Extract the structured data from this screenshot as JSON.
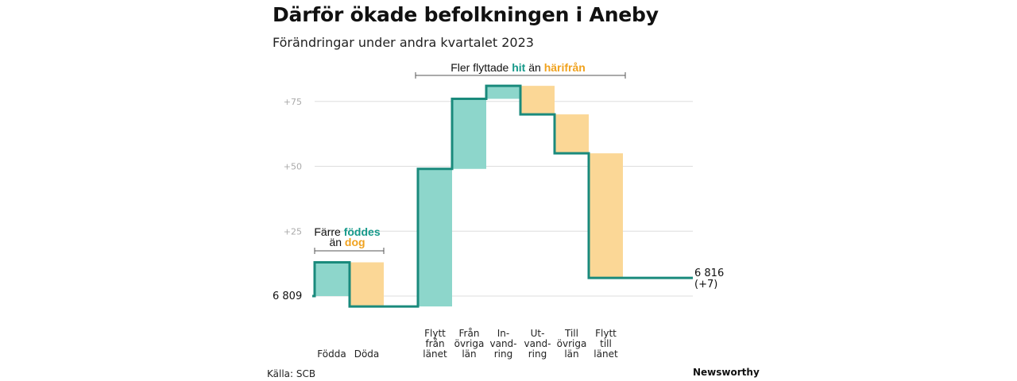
{
  "title": "Därför ökade befolkningen i Aneby",
  "subtitle": "Förändringar under andra kvartalet 2023",
  "source": "Källa: SCB",
  "brand": "Newsworthy",
  "colors": {
    "increase": "#8dd6cb",
    "decrease": "#fbd796",
    "line": "#1a8a7c",
    "teal_text": "#16998a",
    "orange_text": "#f0a21e",
    "grid": "#dddddd"
  },
  "annotations": {
    "births": {
      "line1_pre": "Färre ",
      "line1_em": "föddes",
      "line2_pre": "än ",
      "line2_em": "dog"
    },
    "moves": {
      "pre": "Fler flyttade ",
      "em1": "hit",
      "mid": " än ",
      "em2": "härifrån"
    }
  },
  "chart_data": {
    "type": "waterfall",
    "start": {
      "label": "6 809",
      "value": 6809
    },
    "end": {
      "label": "6 816",
      "sublabel": "(+7)",
      "value": 6816
    },
    "yticks": [
      {
        "offset": 25,
        "label": "+25"
      },
      {
        "offset": 50,
        "label": "+50"
      },
      {
        "offset": 75,
        "label": "+75"
      }
    ],
    "ylim": [
      -5,
      90
    ],
    "categories": [
      {
        "label": [
          "Födda"
        ],
        "change": 13
      },
      {
        "label": [
          "Döda"
        ],
        "change": -17
      },
      {
        "label": [
          "Flytt",
          "från",
          "länet"
        ],
        "change": 53
      },
      {
        "label": [
          "Från",
          "övriga",
          "län"
        ],
        "change": 27
      },
      {
        "label": [
          "In-",
          "vand-",
          "ring"
        ],
        "change": 5
      },
      {
        "label": [
          "Ut-",
          "vand-",
          "ring"
        ],
        "change": -11
      },
      {
        "label": [
          "Till",
          "övriga",
          "län"
        ],
        "change": -15
      },
      {
        "label": [
          "Flytt",
          "till",
          "länet"
        ],
        "change": -48
      }
    ]
  }
}
